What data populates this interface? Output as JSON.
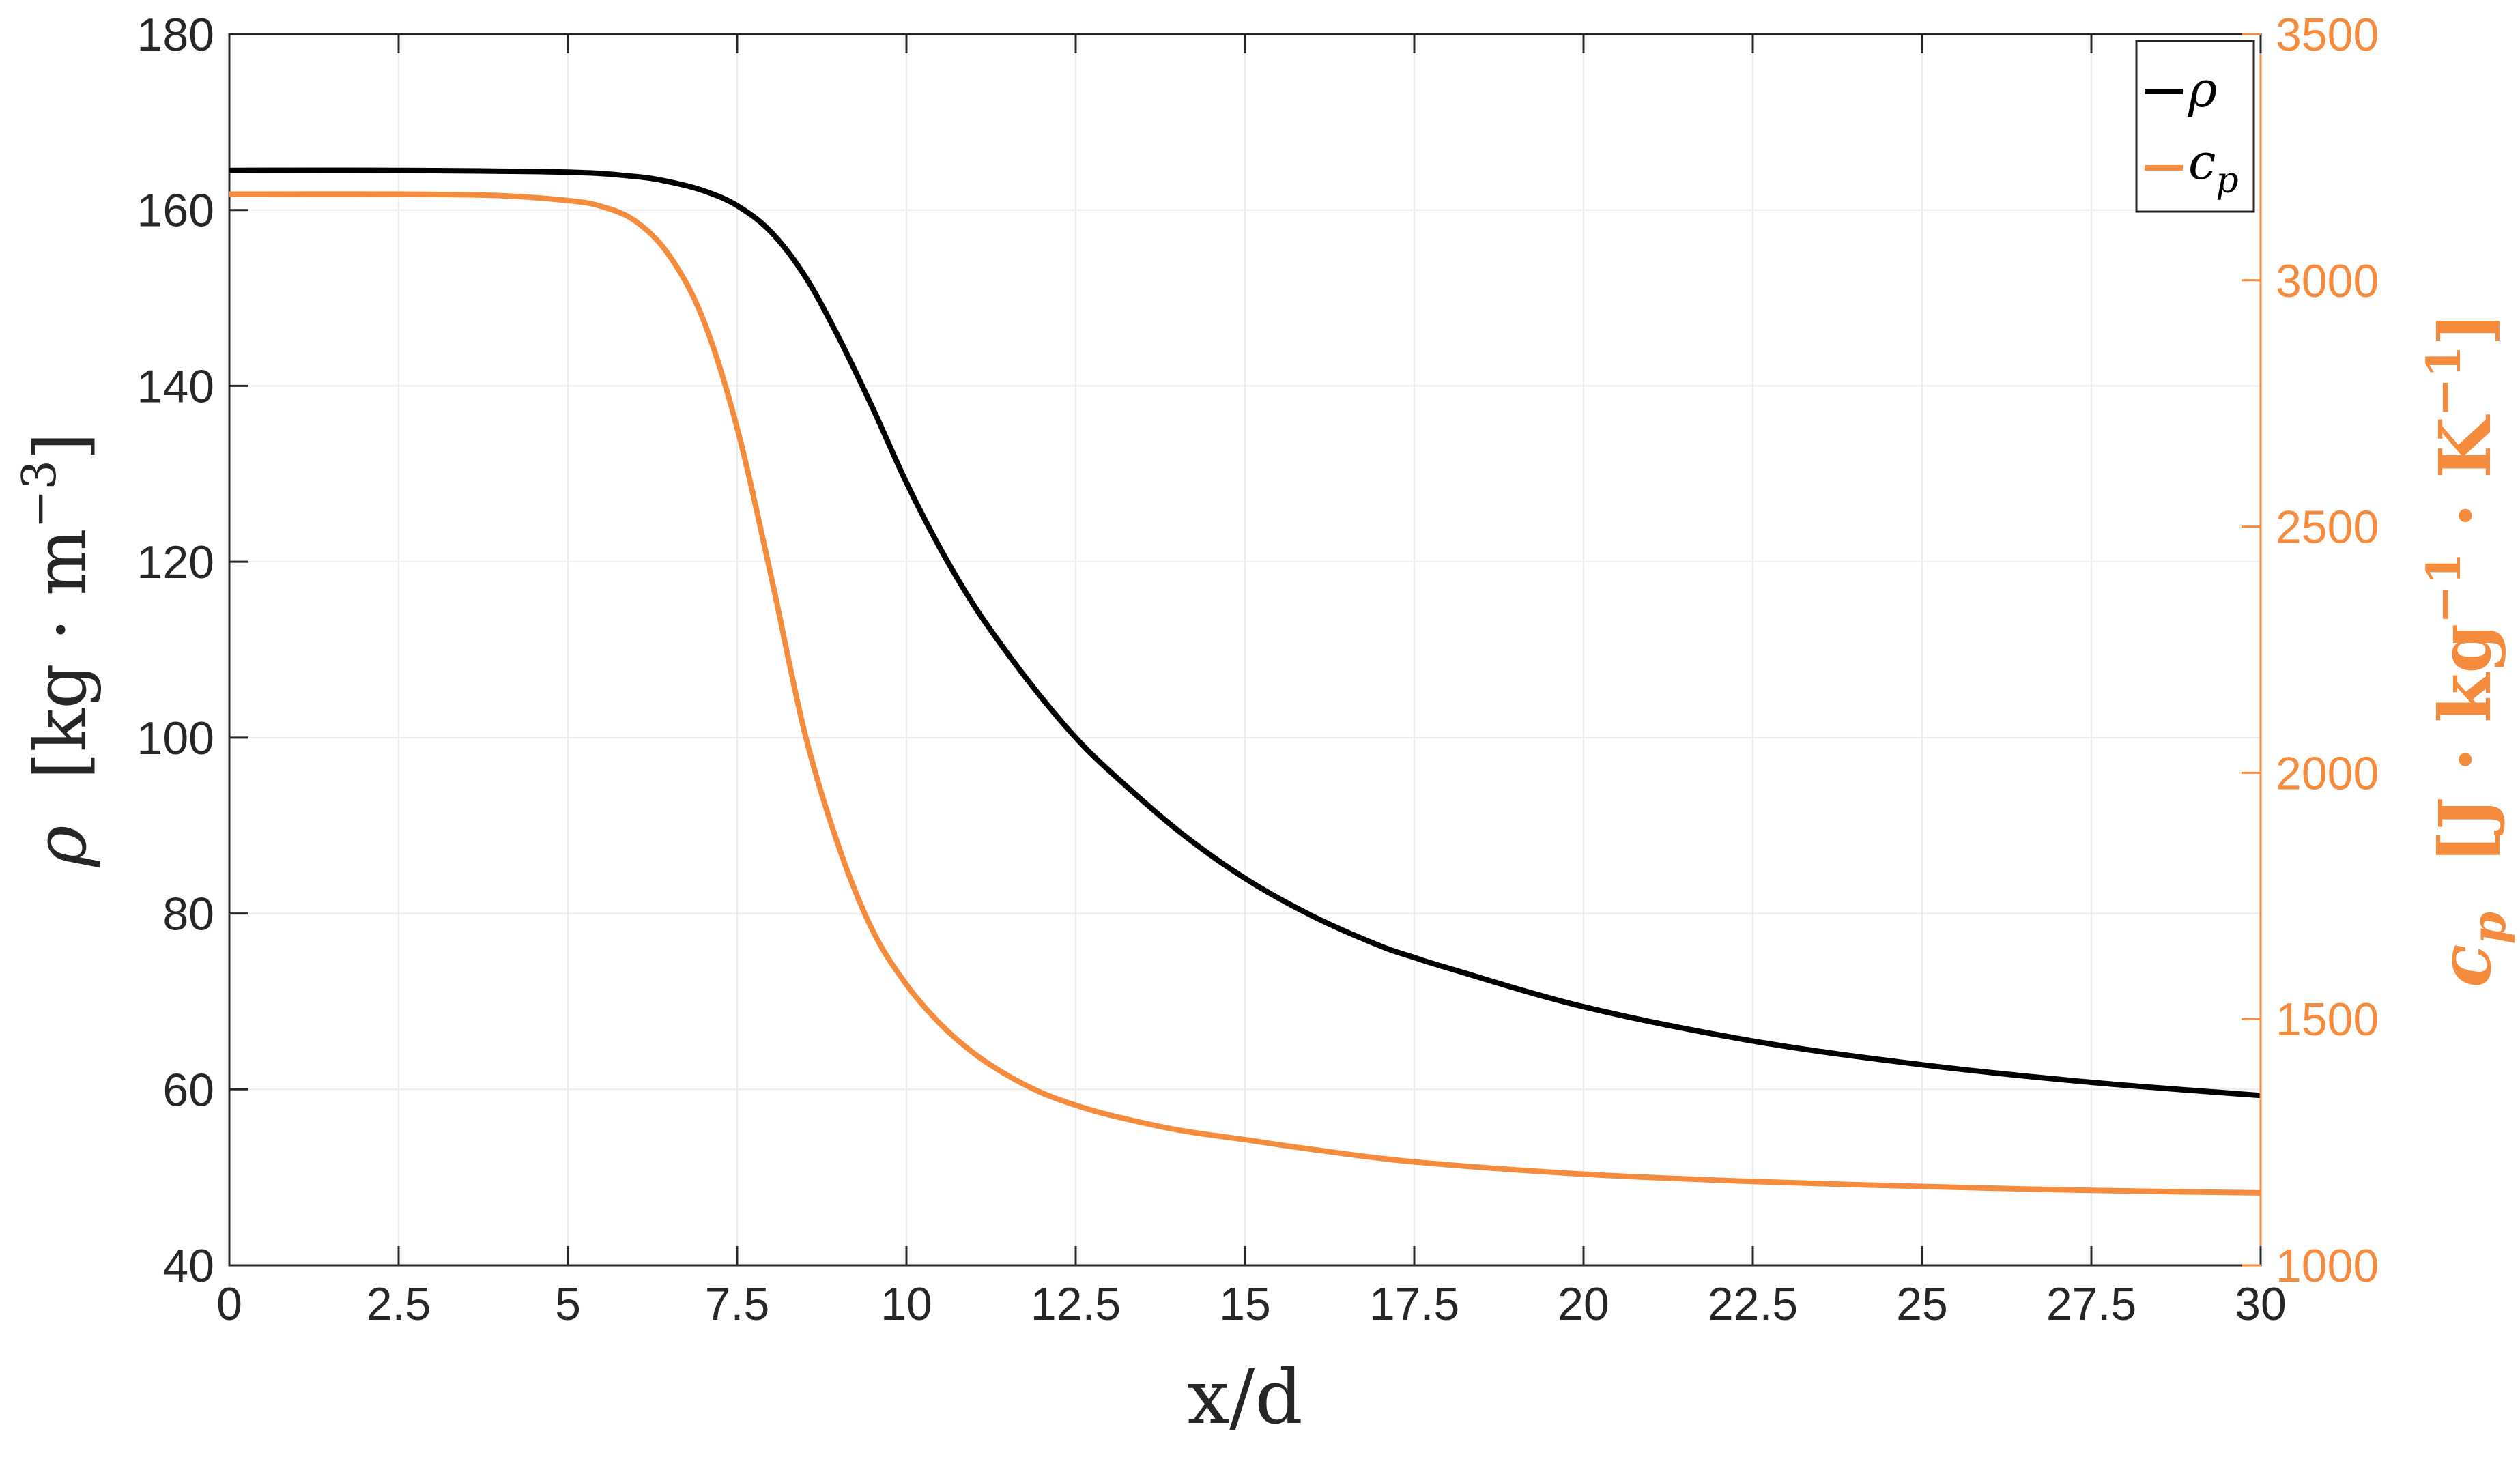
{
  "chart_data": {
    "type": "line",
    "title": "",
    "xlabel": "x/d",
    "ylabel_left": {
      "symbol": "ρ",
      "unit_open": "[kg · m",
      "unit_exp": "−3",
      "unit_close": "]"
    },
    "ylabel_right": {
      "symbol": "c",
      "subscript": "p",
      "unit_open": "[J · kg",
      "unit_exp1": "−1",
      "unit_mid": " · K",
      "unit_exp2": "−1",
      "unit_close": "]"
    },
    "xlim": [
      0,
      30
    ],
    "ylim_left": [
      40,
      180
    ],
    "ylim_right": [
      1000,
      3500
    ],
    "xticks": [
      0,
      2.5,
      5,
      7.5,
      10,
      12.5,
      15,
      17.5,
      20,
      22.5,
      25,
      27.5,
      30
    ],
    "xtick_labels": [
      "0",
      "2.5",
      "5",
      "7.5",
      "10",
      "12.5",
      "15",
      "17.5",
      "20",
      "22.5",
      "25",
      "27.5",
      "30"
    ],
    "yticks_left": [
      40,
      60,
      80,
      100,
      120,
      140,
      160,
      180
    ],
    "ytick_labels_left": [
      "40",
      "60",
      "80",
      "100",
      "120",
      "140",
      "160",
      "180"
    ],
    "yticks_right": [
      1000,
      1500,
      2000,
      2500,
      3000,
      3500
    ],
    "ytick_labels_right": [
      "1000",
      "1500",
      "2000",
      "2500",
      "3000",
      "3500"
    ],
    "grid": true,
    "legend_placement": "top-right",
    "series": [
      {
        "name": "ρ",
        "axis": "left",
        "color": "#000000",
        "x": [
          0,
          2.5,
          5,
          6,
          6.5,
          7,
          7.5,
          8,
          8.5,
          9,
          9.5,
          10,
          10.5,
          11,
          11.5,
          12,
          12.5,
          13,
          14,
          15,
          16,
          17,
          17.5,
          18,
          20,
          22.5,
          25,
          27.5,
          30
        ],
        "y": [
          164.5,
          164.5,
          164.3,
          163.8,
          163.2,
          162.2,
          160.5,
          157.5,
          152.5,
          145.5,
          137.5,
          129.0,
          121.5,
          115.0,
          109.5,
          104.5,
          100.0,
          96.2,
          89.5,
          84.0,
          79.7,
          76.3,
          75.0,
          73.8,
          69.4,
          65.5,
          62.8,
          60.8,
          59.3
        ]
      },
      {
        "name": "c_p",
        "axis": "right",
        "color": "#f58b3c",
        "x": [
          0,
          2.5,
          4,
          5,
          5.5,
          6,
          6.5,
          7,
          7.5,
          8,
          8.5,
          9,
          9.5,
          10,
          10.5,
          11,
          11.5,
          12,
          12.5,
          13,
          14,
          15,
          16,
          17.5,
          20,
          22.5,
          25,
          27.5,
          30
        ],
        "y": [
          3175,
          3175,
          3172,
          3162,
          3150,
          3120,
          3050,
          2920,
          2700,
          2400,
          2080,
          1850,
          1680,
          1570,
          1490,
          1430,
          1385,
          1350,
          1325,
          1305,
          1275,
          1255,
          1235,
          1210,
          1185,
          1170,
          1160,
          1152,
          1147
        ]
      }
    ],
    "legend": [
      {
        "symbol": "ρ",
        "subscript": "",
        "color": "#000000"
      },
      {
        "symbol": "c",
        "subscript": "p",
        "color": "#f58b3c"
      }
    ],
    "colors": {
      "left_axis": "#262626",
      "right_axis": "#f58b3c",
      "grid": "#ebebeb",
      "rho": "#000000",
      "cp": "#f58b3c"
    }
  }
}
